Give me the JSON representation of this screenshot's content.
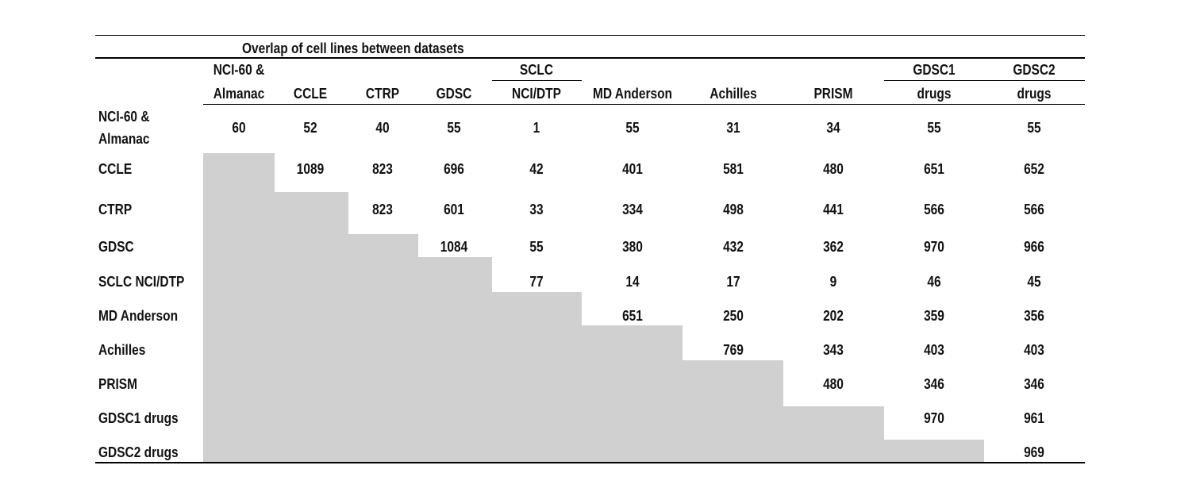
{
  "table": {
    "title": "Overlap of cell lines between datasets",
    "column_headers": [
      {
        "line1": "NCI-60 &",
        "line2": "Almanac"
      },
      {
        "line1": "",
        "line2": "CCLE"
      },
      {
        "line1": "",
        "line2": "CTRP"
      },
      {
        "line1": "",
        "line2": "GDSC"
      },
      {
        "line1": "SCLC",
        "line2": "NCI/DTP"
      },
      {
        "line1": "",
        "line2": "MD Anderson"
      },
      {
        "line1": "",
        "line2": "Achilles"
      },
      {
        "line1": "",
        "line2": "PRISM"
      },
      {
        "line1": "GDSC1",
        "line2": "drugs"
      },
      {
        "line1": "GDSC2",
        "line2": "drugs"
      }
    ],
    "rows": [
      {
        "label1": "NCI-60 &",
        "label2": "Almanac",
        "values": [
          "60",
          "52",
          "40",
          "55",
          "1",
          "55",
          "31",
          "34",
          "55",
          "55"
        ]
      },
      {
        "label1": "CCLE",
        "label2": "",
        "values": [
          "",
          "1089",
          "823",
          "696",
          "42",
          "401",
          "581",
          "480",
          "651",
          "652"
        ]
      },
      {
        "label1": "CTRP",
        "label2": "",
        "values": [
          "",
          "",
          "823",
          "601",
          "33",
          "334",
          "498",
          "441",
          "566",
          "566"
        ]
      },
      {
        "label1": "GDSC",
        "label2": "",
        "values": [
          "",
          "",
          "",
          "1084",
          "55",
          "380",
          "432",
          "362",
          "970",
          "966"
        ]
      },
      {
        "label1": "SCLC NCI/DTP",
        "label2": "",
        "values": [
          "",
          "",
          "",
          "",
          "77",
          "14",
          "17",
          "9",
          "46",
          "45"
        ]
      },
      {
        "label1": "MD Anderson",
        "label2": "",
        "values": [
          "",
          "",
          "",
          "",
          "",
          "651",
          "250",
          "202",
          "359",
          "356"
        ]
      },
      {
        "label1": "Achilles",
        "label2": "",
        "values": [
          "",
          "",
          "",
          "",
          "",
          "",
          "769",
          "343",
          "403",
          "403"
        ]
      },
      {
        "label1": "PRISM",
        "label2": "",
        "values": [
          "",
          "",
          "",
          "",
          "",
          "",
          "",
          "480",
          "346",
          "346"
        ]
      },
      {
        "label1": "GDSC1 drugs",
        "label2": "",
        "values": [
          "",
          "",
          "",
          "",
          "",
          "",
          "",
          "",
          "970",
          "961"
        ]
      },
      {
        "label1": "GDSC2 drugs",
        "label2": "",
        "values": [
          "",
          "",
          "",
          "",
          "",
          "",
          "",
          "",
          "",
          "969"
        ]
      }
    ],
    "shade_color": "#d1d0d1"
  }
}
